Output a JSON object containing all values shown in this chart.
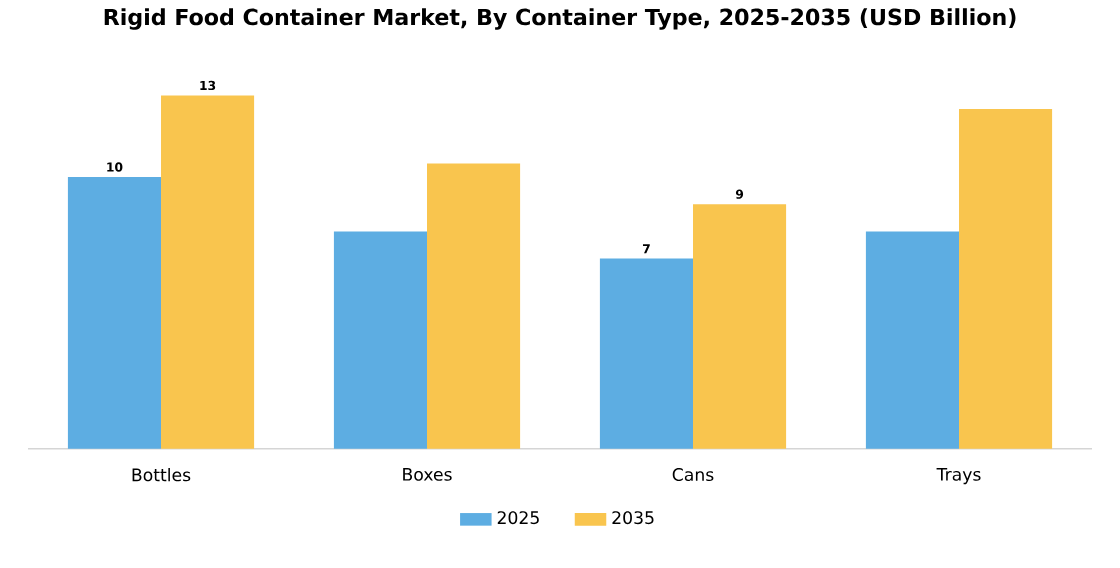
{
  "chart_data": {
    "type": "bar",
    "title": "Rigid Food Container Market, By Container Type, 2025-2035 (USD Billion)",
    "categories": [
      "Bottles",
      "Boxes",
      "Cans",
      "Trays"
    ],
    "series": [
      {
        "name": "2025",
        "color": "#5dade2",
        "values": [
          10,
          8.0,
          7,
          8.0
        ],
        "value_labels": [
          "10",
          null,
          "7",
          null
        ]
      },
      {
        "name": "2035",
        "color": "#f9c54e",
        "values": [
          13,
          10.5,
          9,
          12.5
        ],
        "value_labels": [
          "13",
          null,
          "9",
          null
        ]
      }
    ],
    "legend": "bottom"
  }
}
